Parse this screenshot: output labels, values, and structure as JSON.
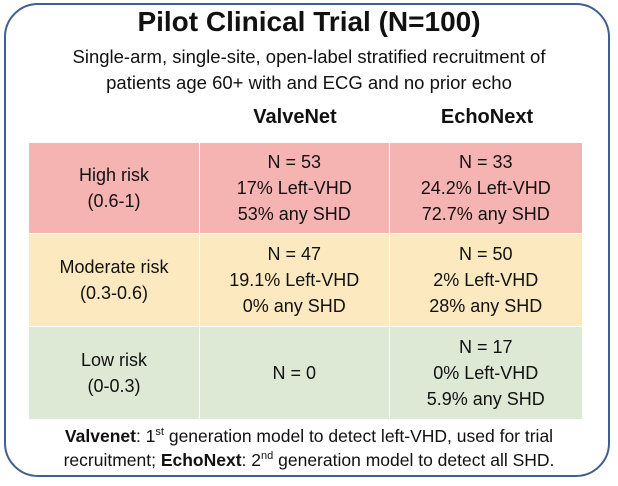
{
  "title": "Pilot Clinical Trial (N=100)",
  "subtitle_line1": "Single-arm, single-site, open-label stratified recruitment of",
  "subtitle_line2": "patients age 60+ with and ECG and no prior echo",
  "columns": [
    "ValveNet",
    "EchoNext"
  ],
  "rows": [
    {
      "label_line1": "High risk",
      "label_line2": "(0.6-1)",
      "color": "#f5b4b2",
      "valvenet": [
        "N = 53",
        "17% Left-VHD",
        "53% any SHD"
      ],
      "echonext": [
        "N = 33",
        "24.2% Left-VHD",
        "72.7% any SHD"
      ]
    },
    {
      "label_line1": "Moderate risk",
      "label_line2": "(0.3-0.6)",
      "color": "#fde9bf",
      "valvenet": [
        "N = 47",
        "19.1% Left-VHD",
        "0% any SHD"
      ],
      "echonext": [
        "N = 50",
        "2% Left-VHD",
        "28% any SHD"
      ]
    },
    {
      "label_line1": "Low risk",
      "label_line2": "(0-0.3)",
      "color": "#dde9d5",
      "valvenet": [
        "N = 0"
      ],
      "echonext": [
        "N = 17",
        "0% Left-VHD",
        "5.9% any SHD"
      ]
    }
  ],
  "footer": {
    "term1": "Valvenet",
    "text1a": ": 1",
    "sup1": "st",
    "text1b": " generation model to detect left-VHD, used for trial",
    "text2a": "recruitment; ",
    "term2": "EchoNext",
    "text2b": ": 2",
    "sup2": "nd",
    "text2c": " generation model to detect all SHD."
  }
}
